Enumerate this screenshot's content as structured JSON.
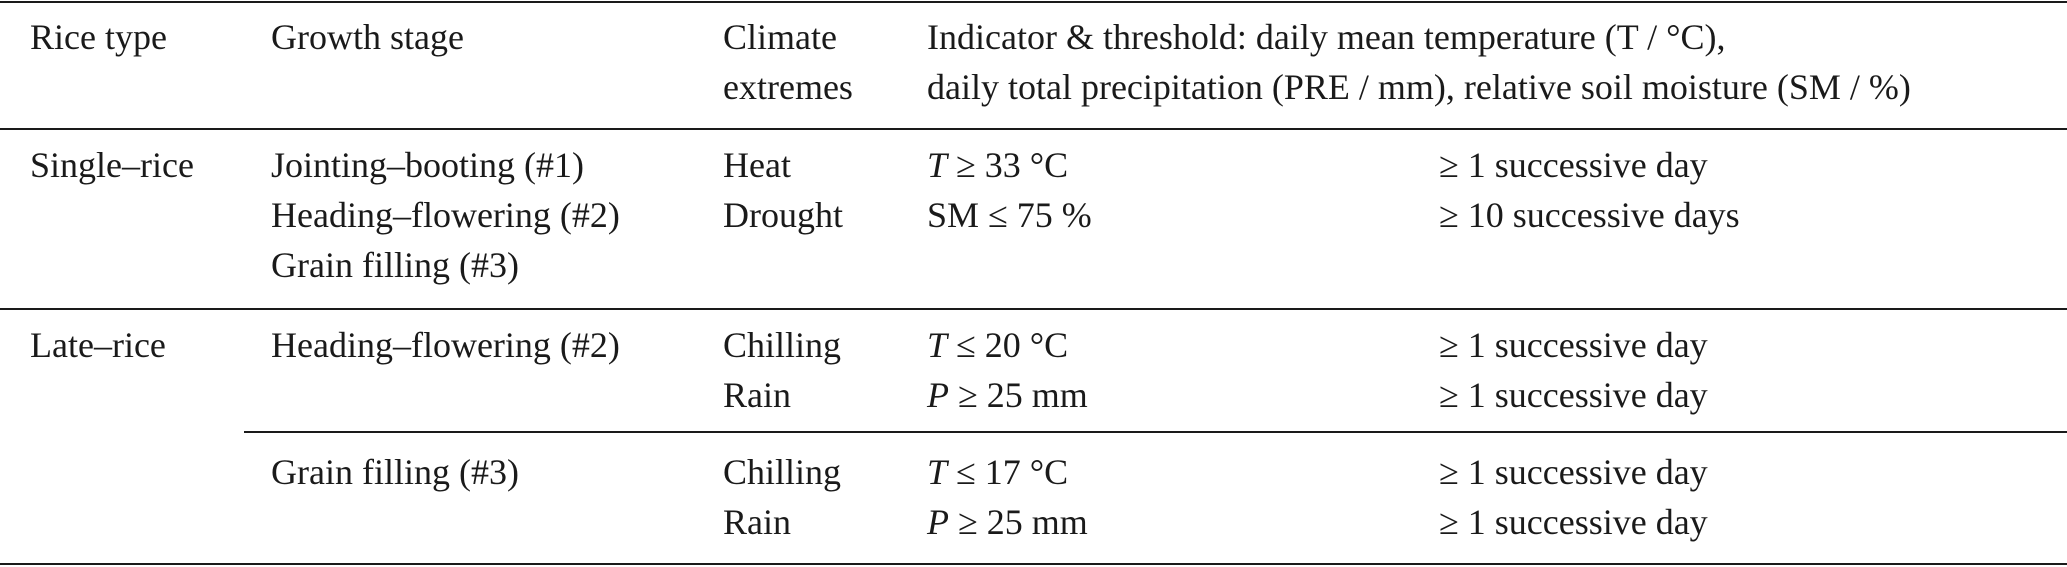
{
  "header": {
    "col1": "Rice type",
    "col2": "Growth stage",
    "col3_line1": "Climate",
    "col3_line2": "extremes",
    "col4_line1": "Indicator & threshold: daily mean temperature (T / °C),",
    "col4_line2": "daily total precipitation (PRE / mm), relative soil moisture (SM / %)"
  },
  "rows": {
    "single": {
      "rice_type": "Single–rice",
      "stages": [
        "Jointing–booting (#1)",
        "Heading–flowering (#2)",
        "Grain filling (#3)"
      ],
      "extremes": [
        "Heat",
        "Drought"
      ],
      "thresholds": [
        {
          "var": "T",
          "cond": " ≥ 33 °C"
        },
        {
          "var": "SM",
          "cond": " ≤ 75 %"
        }
      ],
      "durations": [
        "≥ 1 successive day",
        "≥ 10 successive days"
      ]
    },
    "late_a": {
      "rice_type": "Late–rice",
      "stage": "Heading–flowering (#2)",
      "extremes": [
        "Chilling",
        "Rain"
      ],
      "thresholds": [
        {
          "var": "T",
          "cond": " ≤ 20 °C"
        },
        {
          "var": "P",
          "cond": " ≥ 25 mm"
        }
      ],
      "durations": [
        "≥ 1 successive day",
        "≥ 1 successive day"
      ]
    },
    "late_b": {
      "stage": "Grain filling (#3)",
      "extremes": [
        "Chilling",
        "Rain"
      ],
      "thresholds": [
        {
          "var": "T",
          "cond": " ≤ 17 °C"
        },
        {
          "var": "P",
          "cond": " ≥ 25 mm"
        }
      ],
      "durations": [
        "≥ 1 successive day",
        "≥ 1 successive day"
      ]
    }
  }
}
